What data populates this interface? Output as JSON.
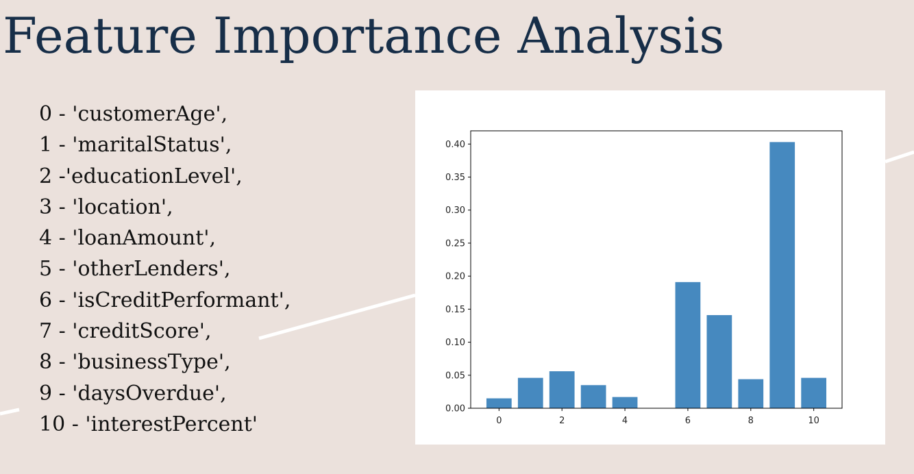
{
  "title": "Feature Importance Analysis",
  "features": [
    "0 - 'customerAge',",
    "1 - 'maritalStatus',",
    "2 -'educationLevel',",
    "3 - 'location',",
    "4 - 'loanAmount',",
    "5 - 'otherLenders',",
    "6 - 'isCreditPerformant',",
    "7 - 'creditScore',",
    "8 - 'businessType',",
    "9 - 'daysOverdue',",
    "10 - 'interestPercent'"
  ],
  "colors": {
    "background": "#ebe1dc",
    "title": "#172e48",
    "bar": "#4689bf",
    "panel": "#ffffff"
  },
  "chart_data": {
    "type": "bar",
    "x": [
      0,
      1,
      2,
      3,
      4,
      5,
      6,
      7,
      8,
      9,
      10
    ],
    "values": [
      0.015,
      0.046,
      0.056,
      0.035,
      0.017,
      0.0,
      0.191,
      0.141,
      0.044,
      0.403,
      0.046
    ],
    "title": "",
    "xlabel": "",
    "ylabel": "",
    "ylim": [
      0,
      0.42
    ],
    "xlim": [
      -0.9,
      10.9
    ],
    "xticks": [
      0,
      2,
      4,
      6,
      8,
      10
    ],
    "yticks": [
      0.0,
      0.05,
      0.1,
      0.15,
      0.2,
      0.25,
      0.3,
      0.35,
      0.4
    ],
    "ytick_labels": [
      "0.00",
      "0.05",
      "0.10",
      "0.15",
      "0.20",
      "0.25",
      "0.30",
      "0.35",
      "0.40"
    ],
    "grid": false,
    "legend": false
  }
}
